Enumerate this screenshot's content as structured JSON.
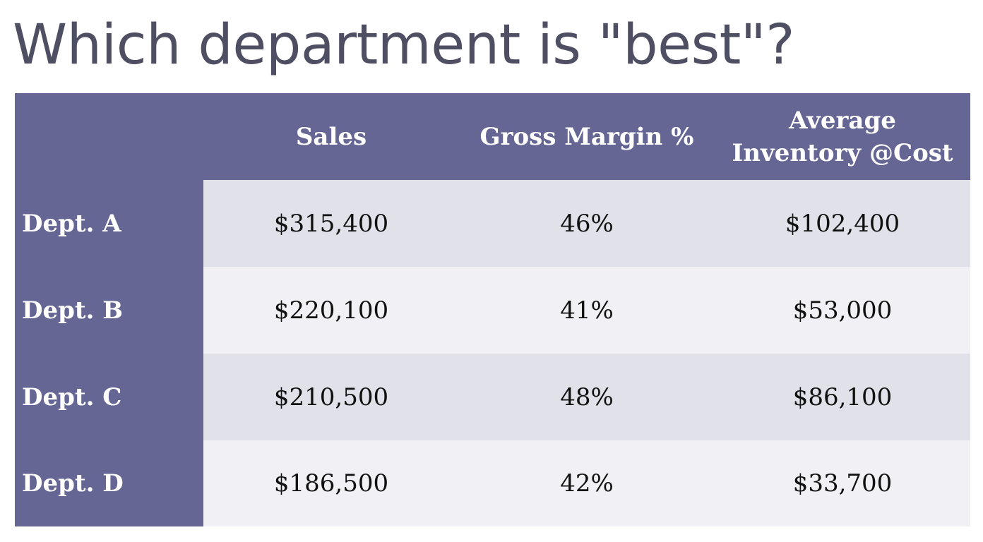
{
  "slide": {
    "title": "Which department is \"best\"?"
  },
  "table": {
    "columns": [
      "",
      "Sales",
      "Gross Margin %",
      "Average Inventory @Cost"
    ],
    "header_line1": {
      "inventory": "Average",
      "inventory_2": "Inventory @Cost"
    },
    "rows": [
      {
        "label": "Dept. A",
        "sales": "$315,400",
        "gross_margin": "46%",
        "avg_inventory": "$102,400"
      },
      {
        "label": "Dept. B",
        "sales": "$220,100",
        "gross_margin": "41%",
        "avg_inventory": "$53,000"
      },
      {
        "label": "Dept. C",
        "sales": "$210,500",
        "gross_margin": "48%",
        "avg_inventory": "$86,100"
      },
      {
        "label": "Dept. D",
        "sales": "$186,500",
        "gross_margin": "42%",
        "avg_inventory": "$33,700"
      }
    ]
  },
  "colors": {
    "header_bg": "#666695",
    "row_band_dark": "#e1e1e9",
    "row_band_light": "#f1f1f5",
    "title_text": "#4f4f63"
  }
}
